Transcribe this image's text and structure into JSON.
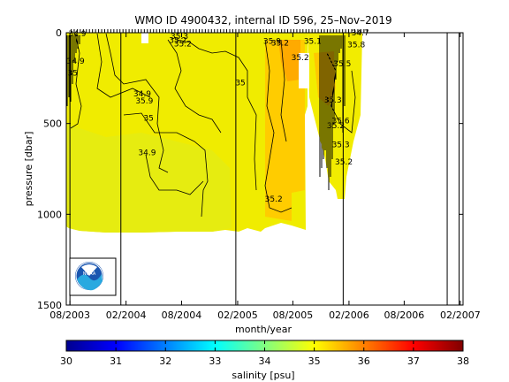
{
  "chart_data": {
    "type": "heatmap",
    "title": "WMO ID 4900432, internal ID 596, 25–Nov–2019",
    "xlabel": "month/year",
    "ylabel": "pressure [dbar]",
    "xlim": [
      "2003-07-20",
      "2007-02-10"
    ],
    "ylim": [
      1500,
      0
    ],
    "x_tick_labels": [
      "08/2003",
      "02/2004",
      "08/2004",
      "02/2005",
      "08/2005",
      "02/2006",
      "08/2006",
      "02/2007"
    ],
    "x_tick_dates": [
      "2003-08-01",
      "2004-02-01",
      "2004-08-01",
      "2005-02-01",
      "2005-08-01",
      "2006-02-01",
      "2006-08-01",
      "2007-02-01"
    ],
    "y_ticks": [
      0,
      500,
      1000,
      1500
    ],
    "colorbar": {
      "label": "salinity [psu]",
      "min": 30,
      "max": 38,
      "ticks": [
        30,
        31,
        32,
        33,
        34,
        35,
        36,
        37,
        38
      ],
      "colors": [
        "#00008f",
        "#0000ff",
        "#0080ff",
        "#00ffff",
        "#80ff80",
        "#ffff00",
        "#ff8000",
        "#ff0000",
        "#800000"
      ]
    },
    "contour_labels": [
      {
        "text": "34.9",
        "x": "2003-08-25",
        "y": 20
      },
      {
        "text": "34.9",
        "x": "2003-08-20",
        "y": 170
      },
      {
        "text": "35",
        "x": "2003-08-10",
        "y": 235
      },
      {
        "text": "34.9",
        "x": "2004-03-25",
        "y": 350
      },
      {
        "text": "35.9",
        "x": "2004-04-01",
        "y": 390
      },
      {
        "text": "35",
        "x": "2004-04-15",
        "y": 485
      },
      {
        "text": "34.9",
        "x": "2004-04-10",
        "y": 675
      },
      {
        "text": "35.2",
        "x": "2004-07-20",
        "y": 55
      },
      {
        "text": "35.3",
        "x": "2004-07-25",
        "y": 35
      },
      {
        "text": "35.2",
        "x": "2004-08-05",
        "y": 75
      },
      {
        "text": "35",
        "x": "2005-02-10",
        "y": 290
      },
      {
        "text": "35.9",
        "x": "2005-05-25",
        "y": 60
      },
      {
        "text": "35.2",
        "x": "2005-06-20",
        "y": 70
      },
      {
        "text": "35.2",
        "x": "2005-05-30",
        "y": 930
      },
      {
        "text": "35.2",
        "x": "2005-08-25",
        "y": 150
      },
      {
        "text": "35.1",
        "x": "2005-10-05",
        "y": 60
      },
      {
        "text": "35.5",
        "x": "2006-01-10",
        "y": 185
      },
      {
        "text": "35.3",
        "x": "2005-12-10",
        "y": 385
      },
      {
        "text": "35.6",
        "x": "2006-01-05",
        "y": 500
      },
      {
        "text": "35.2",
        "x": "2005-12-20",
        "y": 525
      },
      {
        "text": "35.3",
        "x": "2006-01-05",
        "y": 630
      },
      {
        "text": "35.2",
        "x": "2006-01-15",
        "y": 725
      },
      {
        "text": "35.8",
        "x": "2006-02-25",
        "y": 80
      },
      {
        "text": "34.7",
        "x": "2006-03-10",
        "y": 15
      }
    ],
    "float_tracks": [
      {
        "date": "2003-08-01",
        "max_pressure": 1500
      },
      {
        "date": "2004-01-15",
        "max_pressure": 1500
      },
      {
        "date": "2005-01-26",
        "max_pressure": 1500
      },
      {
        "date": "2006-01-13",
        "max_pressure": 1500
      },
      {
        "date": "2006-12-20",
        "max_pressure": 1500
      },
      {
        "date": "2007-01-28",
        "max_pressure": 1500
      }
    ]
  },
  "icons": {
    "logo": "noaa-logo-icon"
  }
}
